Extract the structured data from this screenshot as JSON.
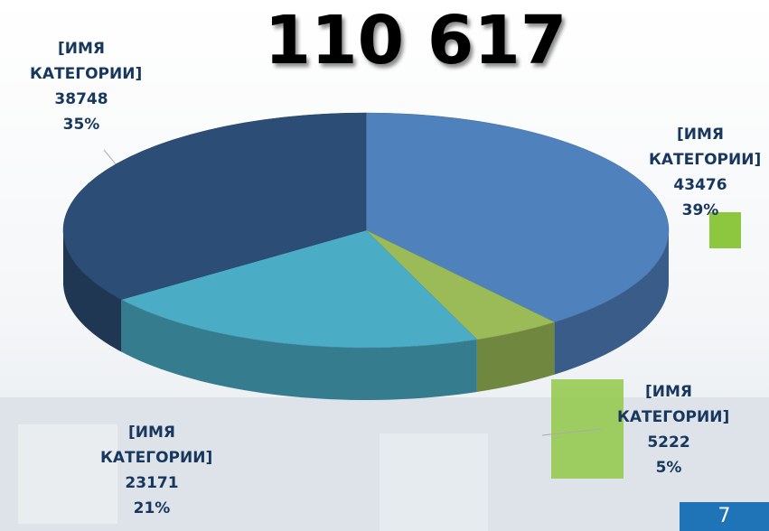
{
  "chart_data": {
    "type": "pie",
    "title": "110 617",
    "categories": [
      "[ИМЯ КАТЕГОРИИ]",
      "[ИМЯ КАТЕГОРИИ]",
      "[ИМЯ КАТЕГОРИИ]",
      "[ИМЯ КАТЕГОРИИ]"
    ],
    "values": [
      43476,
      5222,
      23171,
      38748
    ],
    "percent_labels": [
      "39%",
      "5%",
      "21%",
      "35%"
    ],
    "colors": [
      "#4f81bd",
      "#9bbb59",
      "#4bacc6",
      "#2c4d75"
    ]
  },
  "page_number": "7"
}
